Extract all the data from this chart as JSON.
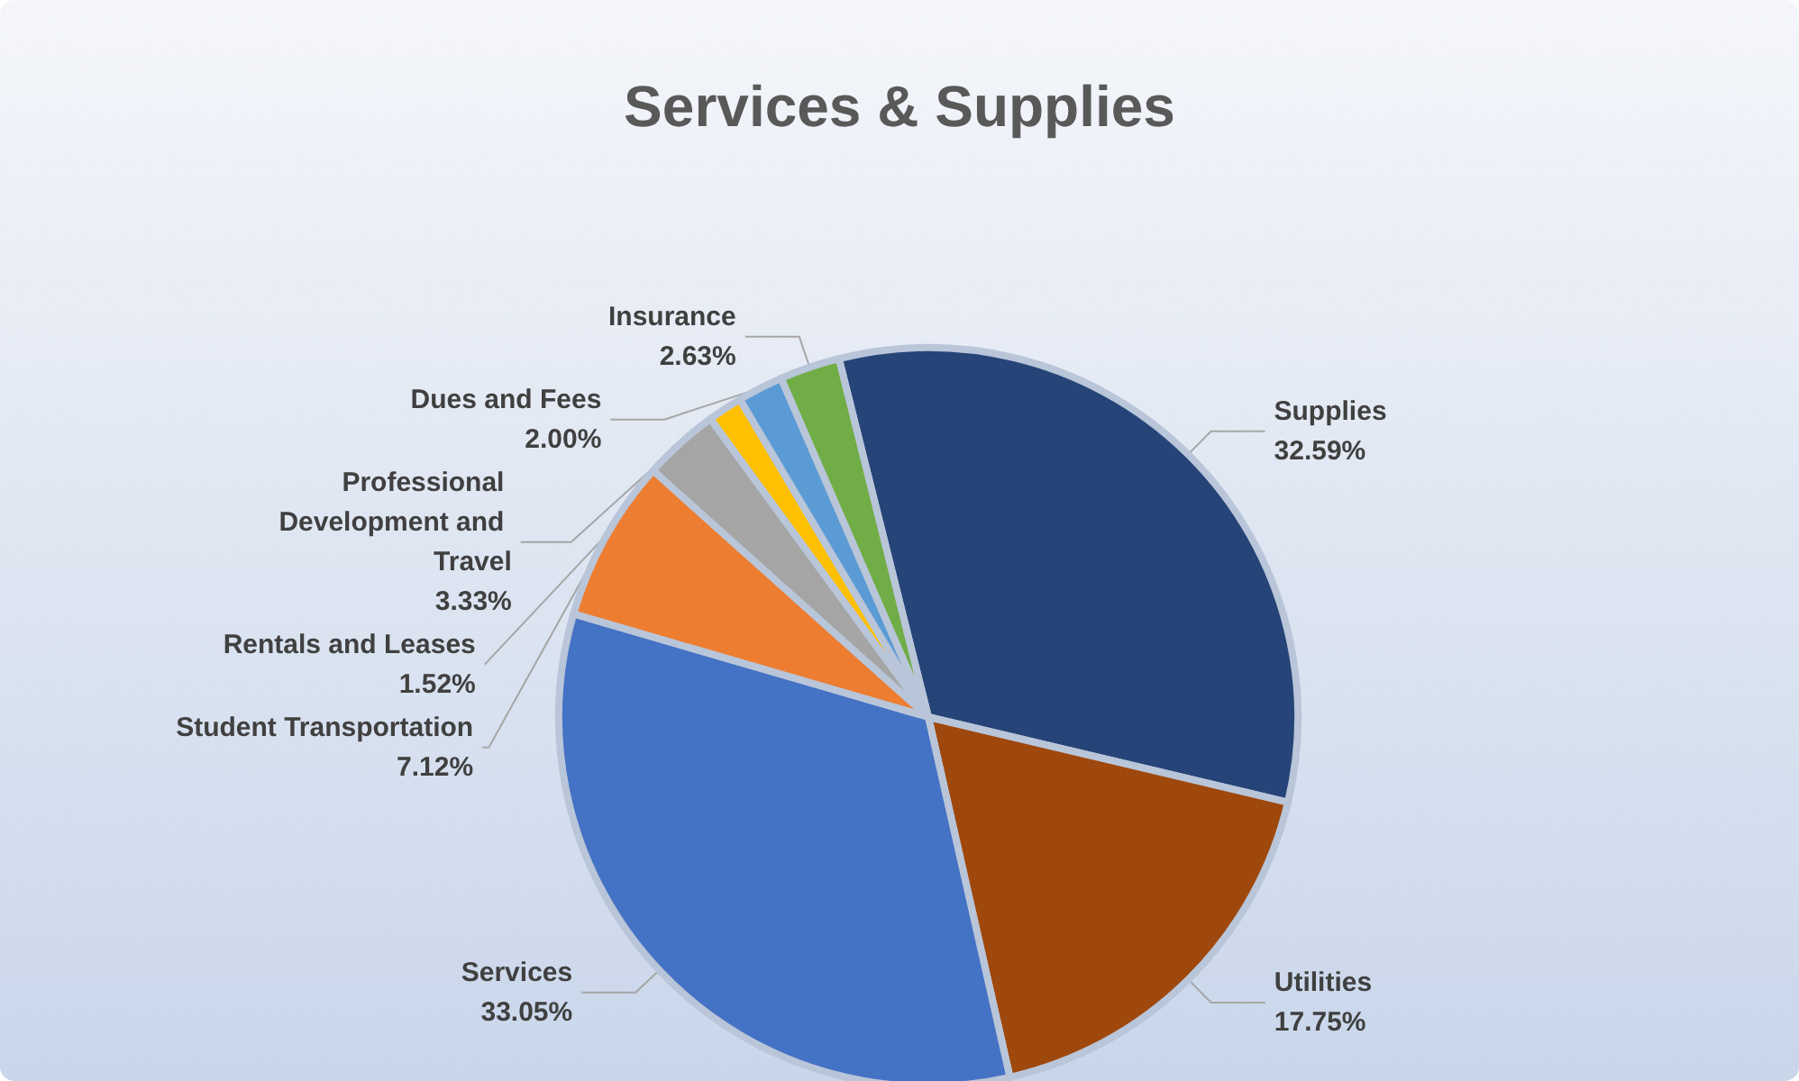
{
  "chart_data": {
    "type": "pie",
    "title": "Services & Supplies",
    "categories": [
      "Supplies",
      "Utilities",
      "Services",
      "Student Transportation",
      "Professional Development and Travel",
      "Rentals and Leases",
      "Dues and Fees",
      "Insurance"
    ],
    "values": [
      32.59,
      17.75,
      33.05,
      7.12,
      3.33,
      1.52,
      2.0,
      2.63
    ],
    "value_labels": [
      "32.59%",
      "17.75%",
      "33.05%",
      "7.12%",
      "3.33%",
      "1.52%",
      "2.00%",
      "2.63%"
    ],
    "colors": [
      "#264478",
      "#9e480e",
      "#4472c4",
      "#ed7d31",
      "#a5a5a5",
      "#ffc000",
      "#5b9bd5",
      "#70ad47"
    ],
    "legend": false
  }
}
